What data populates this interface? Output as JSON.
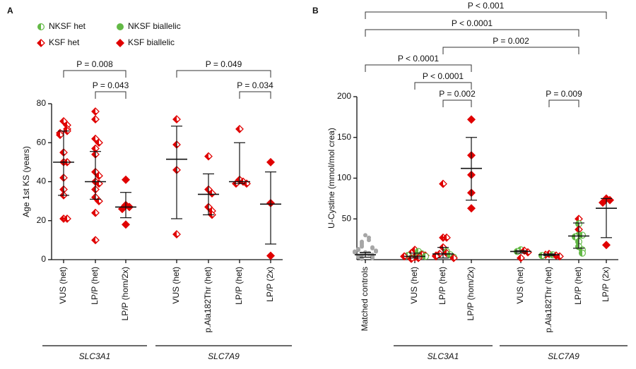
{
  "legend": [
    {
      "name": "NKSF het",
      "color": "#63b946",
      "marker": "half-circle"
    },
    {
      "name": "NKSF biallelic",
      "color": "#63b946",
      "marker": "circle"
    },
    {
      "name": "KSF het",
      "color": "#e00000",
      "marker": "half-diamond"
    },
    {
      "name": "KSF biallelic",
      "color": "#e00000",
      "marker": "diamond"
    }
  ],
  "chart_data": [
    {
      "type": "dot",
      "panel": "A",
      "ylabel": "Age 1st KS (years)",
      "ylim": [
        0,
        80
      ],
      "yticks": [
        0,
        20,
        40,
        60,
        80
      ],
      "categories": [
        "VUS (het)",
        "LP/P (het)",
        "LP/P (hom/2x)",
        "VUS (het)",
        "p.Ala182Thr (het)",
        "LP/P (het)",
        "LP/P (2x)"
      ],
      "values": [
        [
          71,
          69,
          67,
          66,
          65,
          64,
          55,
          50,
          50,
          42,
          36,
          33,
          21,
          21
        ],
        [
          76,
          72,
          62,
          60,
          57,
          54,
          45,
          43,
          40,
          39,
          36,
          32,
          30,
          24,
          10
        ],
        [
          41,
          28,
          27,
          26,
          18
        ],
        [
          72,
          59,
          46,
          13
        ],
        [
          53,
          36,
          34,
          27,
          25,
          23
        ],
        [
          67,
          41,
          40,
          39,
          39
        ],
        [
          50,
          29,
          2
        ]
      ],
      "kinds": [
        [
          2,
          2,
          2,
          2,
          2,
          2,
          2,
          2,
          2,
          2,
          2,
          2,
          2,
          2
        ],
        [
          2,
          2,
          2,
          2,
          2,
          2,
          2,
          2,
          2,
          2,
          2,
          2,
          2,
          2,
          2
        ],
        [
          3,
          3,
          3,
          3,
          3
        ],
        [
          2,
          2,
          2,
          2
        ],
        [
          2,
          2,
          2,
          2,
          2,
          2
        ],
        [
          2,
          2,
          2,
          2,
          2
        ],
        [
          3,
          3,
          3
        ]
      ],
      "center": [
        50,
        40,
        27,
        51.5,
        33.5,
        40,
        28.5
      ],
      "lower": [
        33,
        31,
        21.5,
        21,
        23,
        39,
        8
      ],
      "upper": [
        66,
        55.5,
        34.5,
        68.5,
        44,
        60,
        45
      ],
      "genes": [
        {
          "label": "SLC3A1",
          "from": 0,
          "to": 2
        },
        {
          "label": "SLC7A9",
          "from": 3,
          "to": 6
        }
      ],
      "brackets": [
        {
          "from": 0,
          "to": 2,
          "label": "P = 0.008"
        },
        {
          "from": 1,
          "to": 2,
          "label": "P = 0.043"
        },
        {
          "from": 3,
          "to": 6,
          "label": "P = 0.049"
        },
        {
          "from": 5,
          "to": 6,
          "label": "P = 0.034"
        }
      ],
      "control_color": "#a6a6a6"
    },
    {
      "type": "dot",
      "panel": "B",
      "ylabel": "U-Cystine (mmol/mol crea)",
      "ylim": [
        0,
        200
      ],
      "yticks": [
        50,
        100,
        150,
        200
      ],
      "categories": [
        "Matched controls",
        "VUS (het)",
        "LP/P (het)",
        "LP/P (hom/2x)",
        "VUS (het)",
        "p.Ala182Thr (het)",
        "LP/P (het)",
        "LP/P (2x)"
      ],
      "values": [
        [
          30,
          27,
          24,
          22,
          20,
          18,
          16,
          15,
          14,
          13,
          12,
          11,
          10,
          10,
          9,
          9,
          8,
          8,
          7,
          7,
          6,
          6,
          5,
          5,
          4,
          4,
          3,
          3,
          2,
          1
        ],
        [
          12,
          10,
          8,
          7,
          6,
          5,
          5,
          4,
          4,
          3,
          3,
          2,
          2,
          1
        ],
        [
          93,
          27,
          27,
          15,
          10,
          8,
          7,
          6,
          5,
          4,
          3,
          2
        ],
        [
          172,
          128,
          104,
          82,
          63
        ],
        [
          12,
          11,
          10,
          9,
          2
        ],
        [
          7,
          6,
          6,
          5,
          5,
          4
        ],
        [
          50,
          44,
          37,
          30,
          30,
          28,
          22,
          16,
          12,
          8
        ],
        [
          75,
          73,
          70,
          18
        ]
      ],
      "kinds": [
        [
          null,
          null,
          null,
          null,
          null,
          null,
          null,
          null,
          null,
          null,
          null,
          null,
          null,
          null,
          null,
          null,
          null,
          null,
          null,
          null,
          null,
          null,
          null,
          null,
          null,
          null,
          null,
          null,
          null,
          null
        ],
        [
          2,
          0,
          2,
          0,
          2,
          0,
          2,
          0,
          2,
          2,
          0,
          2,
          0,
          2
        ],
        [
          2,
          2,
          2,
          2,
          0,
          2,
          2,
          0,
          2,
          2,
          0,
          2
        ],
        [
          3,
          3,
          3,
          3,
          3
        ],
        [
          0,
          2,
          0,
          2,
          2
        ],
        [
          2,
          0,
          2,
          2,
          0,
          2
        ],
        [
          2,
          0,
          2,
          0,
          0,
          0,
          0,
          0,
          0,
          0
        ],
        [
          3,
          3,
          3,
          3
        ]
      ],
      "center": [
        6,
        4,
        7,
        112,
        10,
        6,
        29,
        63
      ],
      "lower": [
        3,
        2,
        2,
        73,
        8,
        5,
        14,
        27
      ],
      "upper": [
        9,
        8,
        15,
        150,
        11,
        7,
        45,
        75
      ],
      "genes": [
        {
          "label": "SLC3A1",
          "from": 1,
          "to": 3
        },
        {
          "label": "SLC7A9",
          "from": 4,
          "to": 7
        }
      ],
      "brackets": [
        {
          "from": 0,
          "to": 7,
          "label": "P < 0.001"
        },
        {
          "from": 0,
          "to": 6,
          "label": "P < 0.0001"
        },
        {
          "from": 2,
          "to": 6,
          "label": "P = 0.002"
        },
        {
          "from": 0,
          "to": 3,
          "label": "P < 0.0001"
        },
        {
          "from": 1,
          "to": 3,
          "label": "P < 0.0001"
        },
        {
          "from": 2,
          "to": 3,
          "label": "P = 0.002"
        },
        {
          "from": 5,
          "to": 6,
          "label": "P = 0.009"
        }
      ],
      "control_color": "#a6a6a6"
    }
  ]
}
